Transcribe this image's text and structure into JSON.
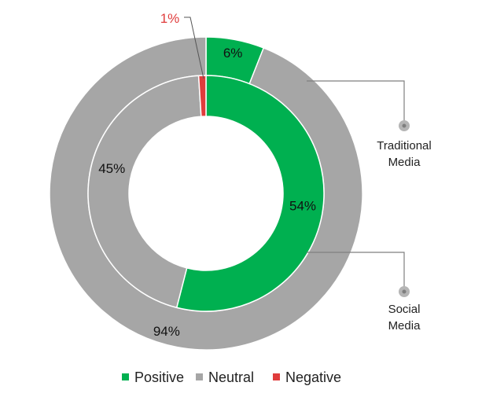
{
  "chart_data": {
    "type": "donut",
    "categories": [
      "Positive",
      "Neutral",
      "Negative"
    ],
    "series": [
      {
        "name": "Traditional Media",
        "ring": "outer",
        "values": [
          6,
          94,
          0
        ],
        "labels": [
          "6%",
          "94%",
          ""
        ]
      },
      {
        "name": "Social Media",
        "ring": "inner",
        "values": [
          54,
          45,
          1
        ],
        "labels": [
          "54%",
          "45%",
          "1%"
        ]
      }
    ],
    "callouts": [
      {
        "series": "Traditional Media",
        "lines": [
          "Traditional",
          "Media"
        ]
      },
      {
        "series": "Social Media",
        "lines": [
          "Social",
          "Media"
        ]
      }
    ],
    "legend": [
      {
        "label": "Positive",
        "color": "#00b050"
      },
      {
        "label": "Neutral",
        "color": "#a6a6a6"
      },
      {
        "label": "Negative",
        "color": "#e03c3c"
      }
    ],
    "legend_position": "bottom",
    "colors": {
      "Positive": "#00b050",
      "Neutral": "#a6a6a6",
      "Negative": "#e03c3c"
    }
  }
}
